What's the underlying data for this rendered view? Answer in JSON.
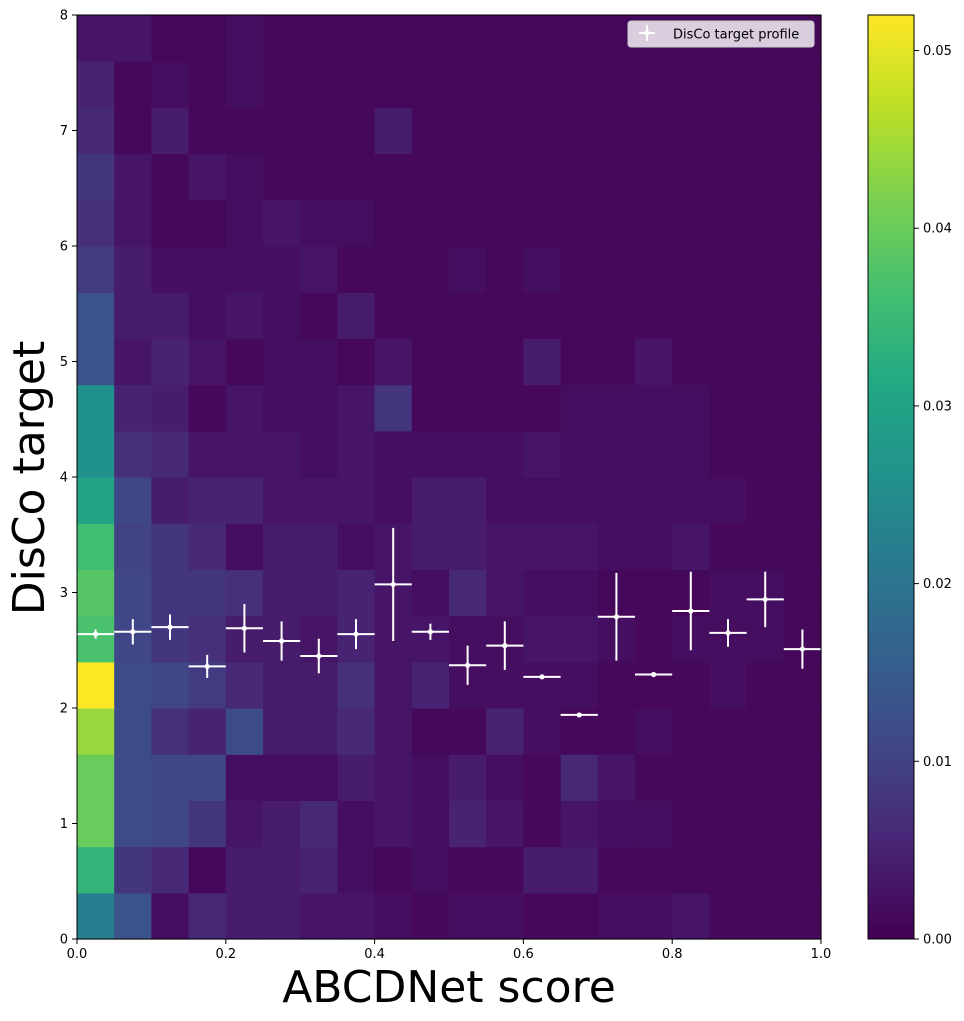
{
  "chart_data": {
    "type": "heatmap",
    "xlabel": "ABCDNet score",
    "ylabel": "DisCo target",
    "xlim": [
      0,
      1
    ],
    "ylim": [
      0,
      8
    ],
    "x_ticks": [
      "0.0",
      "0.2",
      "0.4",
      "0.6",
      "0.8",
      "1.0"
    ],
    "y_ticks": [
      "0",
      "1",
      "2",
      "3",
      "4",
      "5",
      "6",
      "7",
      "8"
    ],
    "x_bins": 20,
    "y_bins": [
      0,
      0.4,
      0.8,
      1.2,
      1.6,
      2.0,
      2.4,
      2.8,
      3.2,
      3.6,
      4.0,
      4.4,
      4.8,
      5.2,
      5.6,
      6.0,
      6.4,
      6.8,
      7.2,
      7.6,
      8.0
    ],
    "colormap": "viridis",
    "colorbar": {
      "range": [
        0,
        0.052
      ],
      "ticks": [
        "0.00",
        "0.01",
        "0.02",
        "0.03",
        "0.04",
        "0.05"
      ]
    },
    "grid": false,
    "legend": {
      "placement": "top-right",
      "entries": [
        "DisCo target profile"
      ]
    },
    "heat_values": [
      [
        0.022,
        0.013,
        0.002,
        0.006,
        0.004,
        0.004,
        0.003,
        0.003,
        0.002,
        0.001,
        0.002,
        0.002,
        0.001,
        0.001,
        0.002,
        0.002,
        0.003,
        0.001,
        0.001,
        0.001
      ],
      [
        0.034,
        0.008,
        0.006,
        0.001,
        0.004,
        0.004,
        0.005,
        0.002,
        0.001,
        0.002,
        0.001,
        0.001,
        0.004,
        0.004,
        0.001,
        0.001,
        0.001,
        0.001,
        0.001,
        0.001
      ],
      [
        0.04,
        0.012,
        0.011,
        0.008,
        0.003,
        0.004,
        0.006,
        0.002,
        0.003,
        0.002,
        0.005,
        0.003,
        0.001,
        0.003,
        0.002,
        0.002,
        0.001,
        0.001,
        0.001,
        0.001
      ],
      [
        0.04,
        0.012,
        0.011,
        0.011,
        0.002,
        0.002,
        0.002,
        0.004,
        0.003,
        0.002,
        0.004,
        0.002,
        0.001,
        0.006,
        0.003,
        0.001,
        0.001,
        0.001,
        0.001,
        0.001
      ],
      [
        0.044,
        0.012,
        0.007,
        0.005,
        0.012,
        0.004,
        0.004,
        0.006,
        0.003,
        0.001,
        0.001,
        0.005,
        0.002,
        0.001,
        0.001,
        0.002,
        0.001,
        0.001,
        0.001,
        0.001
      ],
      [
        0.052,
        0.012,
        0.011,
        0.009,
        0.006,
        0.004,
        0.004,
        0.007,
        0.003,
        0.005,
        0.002,
        0.002,
        0.002,
        0.002,
        0.001,
        0.001,
        0.001,
        0.002,
        0.001,
        0.001
      ],
      [
        0.037,
        0.011,
        0.008,
        0.007,
        0.004,
        0.004,
        0.003,
        0.005,
        0.003,
        0.003,
        0.002,
        0.002,
        0.003,
        0.003,
        0.002,
        0.001,
        0.002,
        0.002,
        0.002,
        0.001
      ],
      [
        0.038,
        0.011,
        0.008,
        0.008,
        0.007,
        0.004,
        0.004,
        0.005,
        0.003,
        0.002,
        0.006,
        0.003,
        0.002,
        0.002,
        0.001,
        0.001,
        0.001,
        0.002,
        0.002,
        0.001
      ],
      [
        0.036,
        0.01,
        0.008,
        0.006,
        0.002,
        0.004,
        0.004,
        0.002,
        0.003,
        0.004,
        0.004,
        0.003,
        0.003,
        0.003,
        0.002,
        0.002,
        0.003,
        0.001,
        0.001,
        0.001
      ],
      [
        0.03,
        0.011,
        0.004,
        0.005,
        0.005,
        0.003,
        0.003,
        0.003,
        0.002,
        0.004,
        0.004,
        0.002,
        0.002,
        0.002,
        0.002,
        0.002,
        0.002,
        0.002,
        0.001,
        0.001
      ],
      [
        0.026,
        0.007,
        0.006,
        0.003,
        0.003,
        0.003,
        0.002,
        0.003,
        0.002,
        0.002,
        0.002,
        0.002,
        0.003,
        0.002,
        0.002,
        0.002,
        0.002,
        0.001,
        0.001,
        0.001
      ],
      [
        0.026,
        0.005,
        0.004,
        0.001,
        0.003,
        0.002,
        0.002,
        0.003,
        0.008,
        0.001,
        0.001,
        0.001,
        0.001,
        0.002,
        0.002,
        0.002,
        0.002,
        0.001,
        0.001,
        0.001
      ],
      [
        0.013,
        0.003,
        0.005,
        0.003,
        0.001,
        0.002,
        0.002,
        0.001,
        0.003,
        0.001,
        0.001,
        0.001,
        0.004,
        0.001,
        0.001,
        0.003,
        0.001,
        0.001,
        0.001,
        0.001
      ],
      [
        0.013,
        0.004,
        0.004,
        0.002,
        0.003,
        0.002,
        0.001,
        0.004,
        0.001,
        0.001,
        0.001,
        0.001,
        0.001,
        0.001,
        0.001,
        0.001,
        0.001,
        0.001,
        0.001,
        0.001
      ],
      [
        0.009,
        0.004,
        0.002,
        0.002,
        0.002,
        0.002,
        0.003,
        0.001,
        0.001,
        0.001,
        0.002,
        0.001,
        0.002,
        0.001,
        0.001,
        0.001,
        0.001,
        0.001,
        0.001,
        0.001
      ],
      [
        0.007,
        0.003,
        0.001,
        0.001,
        0.002,
        0.003,
        0.002,
        0.002,
        0.001,
        0.001,
        0.001,
        0.001,
        0.001,
        0.001,
        0.001,
        0.001,
        0.001,
        0.001,
        0.001,
        0.001
      ],
      [
        0.008,
        0.003,
        0.001,
        0.003,
        0.002,
        0.001,
        0.001,
        0.001,
        0.001,
        0.001,
        0.001,
        0.001,
        0.001,
        0.001,
        0.001,
        0.001,
        0.001,
        0.001,
        0.001,
        0.001
      ],
      [
        0.006,
        0.001,
        0.004,
        0.001,
        0.001,
        0.001,
        0.001,
        0.001,
        0.004,
        0.001,
        0.001,
        0.001,
        0.001,
        0.001,
        0.001,
        0.001,
        0.001,
        0.001,
        0.001,
        0.001
      ],
      [
        0.005,
        0.001,
        0.002,
        0.001,
        0.002,
        0.001,
        0.001,
        0.001,
        0.001,
        0.001,
        0.001,
        0.001,
        0.001,
        0.001,
        0.001,
        0.001,
        0.001,
        0.001,
        0.001,
        0.001
      ],
      [
        0.003,
        0.003,
        0.001,
        0.001,
        0.002,
        0.001,
        0.001,
        0.001,
        0.001,
        0.001,
        0.001,
        0.001,
        0.001,
        0.001,
        0.001,
        0.001,
        0.001,
        0.001,
        0.001,
        0.001
      ]
    ],
    "series": [
      {
        "name": "DisCo target profile",
        "type": "errorbar",
        "x": [
          0.025,
          0.075,
          0.125,
          0.175,
          0.225,
          0.275,
          0.325,
          0.375,
          0.425,
          0.475,
          0.525,
          0.575,
          0.625,
          0.675,
          0.725,
          0.775,
          0.825,
          0.875,
          0.925,
          0.975
        ],
        "y": [
          2.64,
          2.66,
          2.7,
          2.36,
          2.69,
          2.58,
          2.45,
          2.64,
          3.07,
          2.66,
          2.37,
          2.54,
          2.27,
          1.94,
          2.79,
          2.29,
          2.84,
          2.65,
          2.94,
          2.51
        ],
        "yerr": [
          0.04,
          0.11,
          0.11,
          0.1,
          0.21,
          0.17,
          0.15,
          0.13,
          0.49,
          0.07,
          0.17,
          0.21,
          0.0,
          0.0,
          0.38,
          0.0,
          0.34,
          0.12,
          0.24,
          0.17
        ],
        "xerr": 0.025
      }
    ]
  }
}
